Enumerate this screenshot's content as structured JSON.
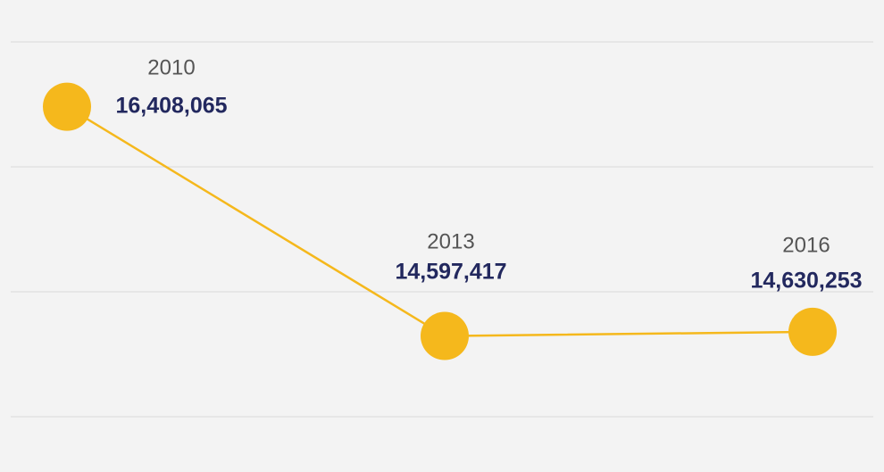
{
  "chart_data": {
    "type": "line",
    "categories": [
      "2010",
      "2013",
      "2016"
    ],
    "series": [
      {
        "color": "#f5b81c",
        "values": [
          16408065,
          14597417,
          14630253
        ],
        "value_labels": [
          "16,408,065",
          "14,597,417",
          "14,630,253"
        ]
      }
    ],
    "ylim": [
      13960000,
      16920000
    ],
    "label_color": "#22285e"
  }
}
